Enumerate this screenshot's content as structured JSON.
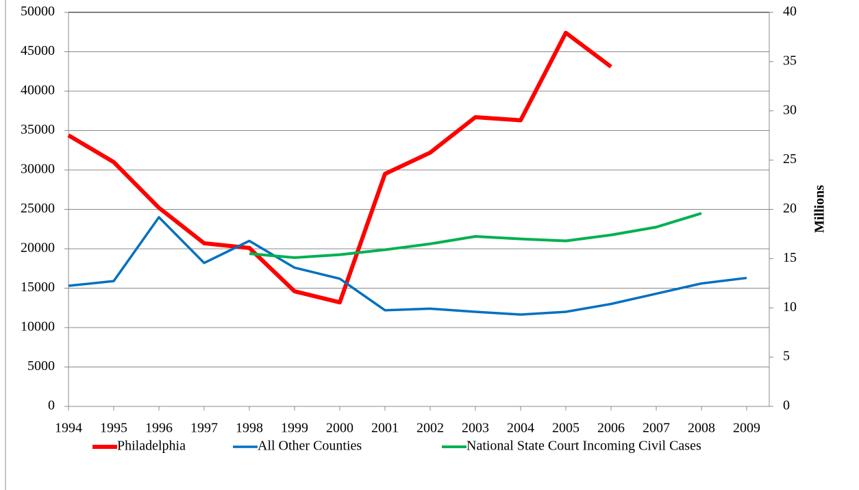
{
  "chart_data": {
    "type": "line",
    "x": [
      1994,
      1995,
      1996,
      1997,
      1998,
      1999,
      2000,
      2001,
      2002,
      2003,
      2004,
      2005,
      2006,
      2007,
      2008,
      2009
    ],
    "xlim": [
      1994,
      2009.5
    ],
    "xticks": [
      1994,
      1995,
      1996,
      1997,
      1998,
      1999,
      2000,
      2001,
      2002,
      2003,
      2004,
      2005,
      2006,
      2007,
      2008,
      2009
    ],
    "ylim": [
      0,
      50000
    ],
    "yticks": [
      0,
      5000,
      10000,
      15000,
      20000,
      25000,
      30000,
      35000,
      40000,
      45000,
      50000
    ],
    "y2lim": [
      0,
      40
    ],
    "y2ticks": [
      0,
      5,
      10,
      15,
      20,
      25,
      30,
      35,
      40
    ],
    "y2_label": "Millions",
    "grid": true,
    "legend": "bottom",
    "series": [
      {
        "name": "Philadelphia",
        "color": "#ff0000",
        "values": [
          34400,
          31000,
          25200,
          20700,
          20100,
          14600,
          13200,
          29500,
          32200,
          36700,
          36300,
          47400,
          43100,
          null,
          null,
          null
        ]
      },
      {
        "name": "All Other Counties",
        "color": "#0070c0",
        "values": [
          15300,
          15900,
          24000,
          18200,
          21000,
          17600,
          16200,
          12200,
          12400,
          12000,
          11650,
          12000,
          13000,
          14300,
          15600,
          16300
        ]
      },
      {
        "name": "National State Court Incoming Civil Cases",
        "color": "#00b050",
        "axis": "y2",
        "values": [
          null,
          null,
          null,
          null,
          15.5,
          15.1,
          15.4,
          15.9,
          16.5,
          17.25,
          17.0,
          16.8,
          17.4,
          18.2,
          19.6,
          null
        ]
      }
    ]
  }
}
